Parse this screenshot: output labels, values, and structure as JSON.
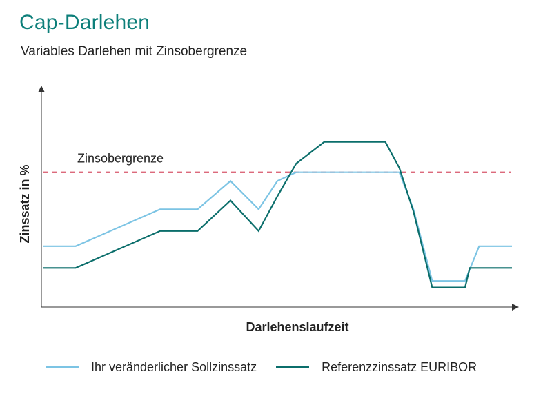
{
  "chart_data": {
    "type": "line",
    "title": "Cap-Darlehen",
    "subtitle": "Variables Darlehen mit Zinsobergrenze",
    "xlabel": "Darlehenslaufzeit",
    "ylabel": "Zinssatz in %",
    "xlim": [
      0,
      100
    ],
    "ylim": [
      0,
      100
    ],
    "grid": false,
    "legend_position": "bottom",
    "cap": {
      "label": "Zinsobergrenze",
      "value": 62,
      "color": "#c8102e"
    },
    "series": [
      {
        "name": "Ihr veränderlicher Sollzinssatz",
        "color": "#7cc4e4",
        "x": [
          0,
          7,
          25,
          33,
          40,
          46,
          50,
          54,
          60,
          64,
          70,
          73,
          76,
          79,
          83,
          86,
          90,
          93,
          100
        ],
        "y": [
          28,
          28,
          45,
          45,
          58,
          45,
          58,
          62,
          62,
          62,
          62,
          62,
          62,
          45,
          12,
          12,
          12,
          28,
          28
        ]
      },
      {
        "name": "Referenzzinssatz EURIBOR",
        "color": "#0b6e6b",
        "x": [
          0,
          7,
          25,
          33,
          40,
          46,
          50,
          54,
          60,
          64,
          70,
          73,
          76,
          79,
          83,
          86,
          90,
          91,
          93,
          100
        ],
        "y": [
          18,
          18,
          35,
          35,
          49,
          35,
          51,
          66,
          76,
          76,
          76,
          76,
          64,
          44,
          9,
          9,
          9,
          18,
          18,
          18
        ]
      }
    ]
  }
}
